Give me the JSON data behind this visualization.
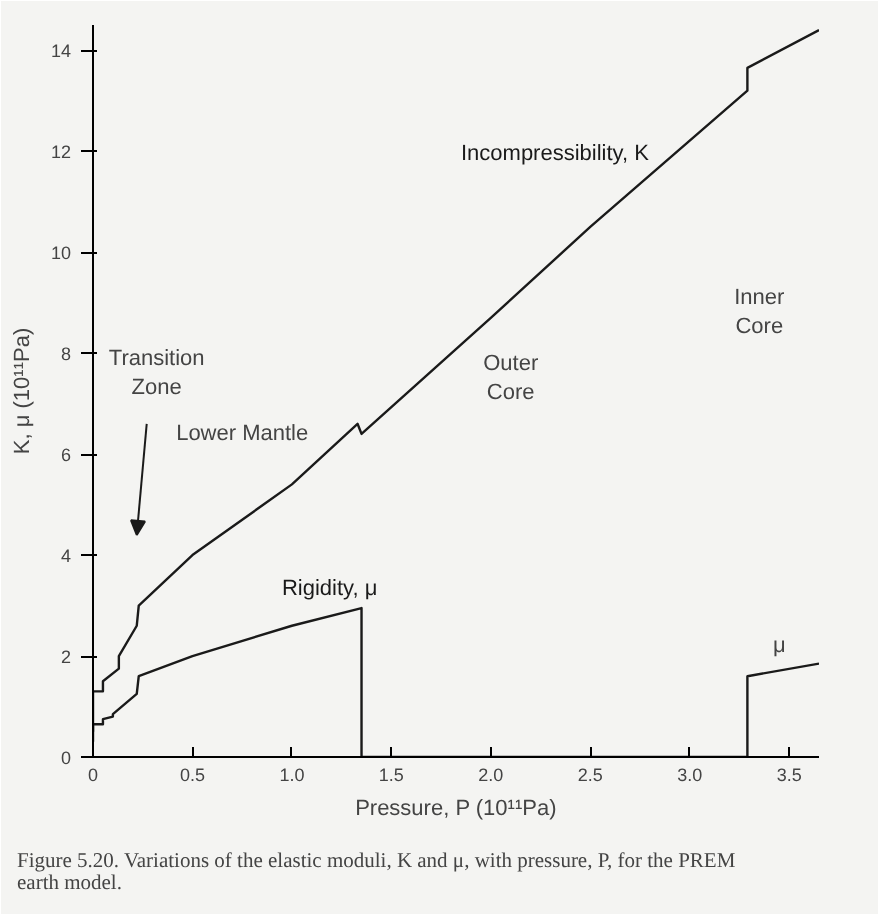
{
  "chart_data": {
    "type": "line",
    "xlabel": "Pressure, P (10¹¹Pa)",
    "ylabel": "K, μ (10¹¹Pa)",
    "xlim": [
      0,
      3.65
    ],
    "ylim": [
      0,
      14.5
    ],
    "xticks": [
      0,
      0.5,
      {
        "value": 1,
        "label": "1.0"
      },
      1.5,
      {
        "value": 2,
        "label": "2.0"
      },
      2.5,
      {
        "value": 3,
        "label": "3.0"
      },
      3.5
    ],
    "yticks": [
      0,
      2,
      4,
      6,
      8,
      10,
      12,
      14
    ],
    "grid": false,
    "marker": "none",
    "line_style": "solid",
    "series": [
      {
        "name": "Incompressibility, K",
        "color": "#1a1a1a",
        "x": [
          0,
          0,
          0.05,
          0.05,
          0.13,
          0.13,
          0.22,
          0.23,
          0.5,
          1.0,
          1.33,
          1.35,
          2.0,
          2.5,
          3.29,
          3.29,
          3.65
        ],
        "values": [
          0.5,
          1.3,
          1.3,
          1.5,
          1.75,
          2.0,
          2.6,
          3.0,
          4.0,
          5.4,
          6.6,
          6.4,
          8.7,
          10.5,
          13.2,
          13.65,
          14.4
        ]
      },
      {
        "name": "Rigidity, μ",
        "color": "#1a1a1a",
        "x": [
          0,
          0,
          0.05,
          0.05,
          0.1,
          0.1,
          0.22,
          0.23,
          0.5,
          1.0,
          1.35,
          1.35,
          3.29,
          3.29,
          3.65
        ],
        "values": [
          0.3,
          0.65,
          0.65,
          0.75,
          0.8,
          0.85,
          1.25,
          1.6,
          2.0,
          2.6,
          2.95,
          0,
          0,
          1.6,
          1.85
        ]
      }
    ],
    "annotations": [
      "Transition\nZone",
      "Lower Mantle",
      "Outer\nCore",
      "Inner\nCore",
      "μ",
      "Figure 5.20.  Variations of the elastic moduli, K and μ, with pressure, P, for the PREM\nearth model."
    ]
  }
}
